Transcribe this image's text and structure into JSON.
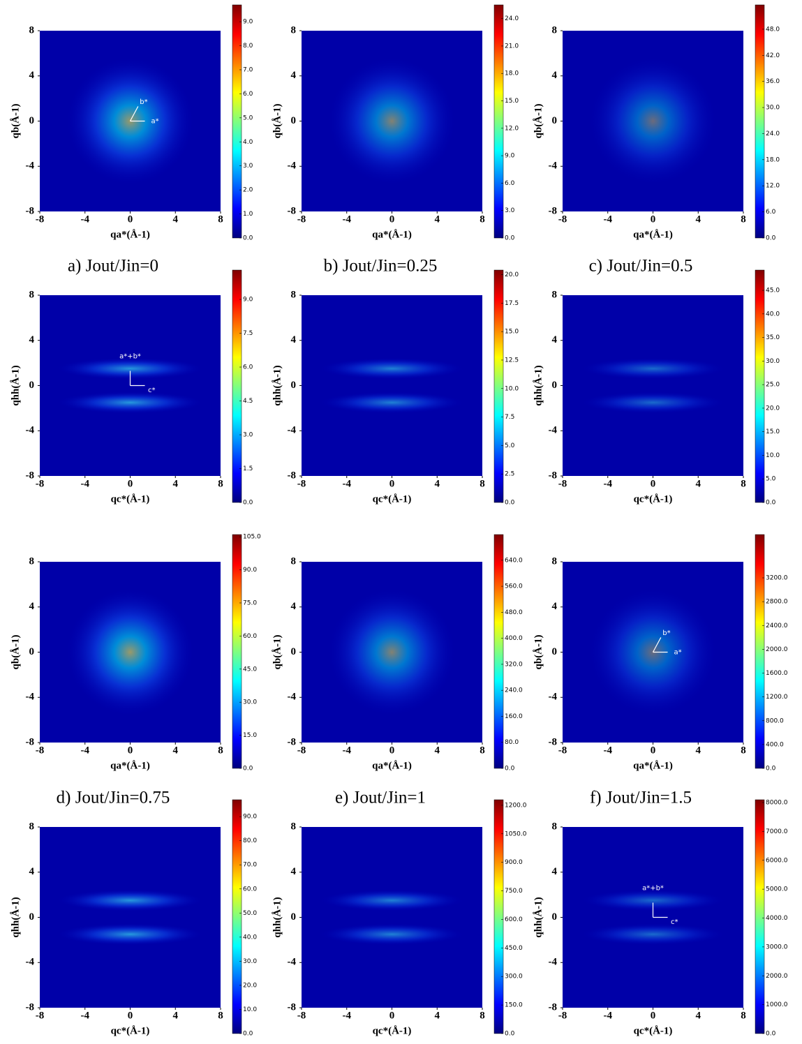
{
  "chart_data": [
    {
      "type": "heatmap",
      "xlabel": "qa*(Å-1)",
      "ylabel": "qb(Å-1)",
      "xlim": [
        -8,
        8
      ],
      "ylim": [
        -8,
        8
      ],
      "xticks": [
        -8,
        -4,
        0,
        4,
        8
      ],
      "yticks": [
        -8,
        -4,
        0,
        4,
        8
      ],
      "colormap": "jet",
      "clim": [
        0,
        9.7
      ],
      "cticks": [
        {
          "value": 0,
          "label": "0.0"
        },
        {
          "value": 1,
          "label": "1.0"
        },
        {
          "value": 2,
          "label": "2.0"
        },
        {
          "value": 3,
          "label": "3.0"
        },
        {
          "value": 4,
          "label": "4.0"
        },
        {
          "value": 5,
          "label": "5.0"
        },
        {
          "value": 6,
          "label": "6.0"
        },
        {
          "value": 7,
          "label": "7.0"
        },
        {
          "value": 8,
          "label": "8.0"
        },
        {
          "value": 9,
          "label": "9.0"
        }
      ],
      "annotations": [
        "b*",
        "a*"
      ]
    },
    {
      "type": "heatmap",
      "xlabel": "qa*(Å-1)",
      "ylabel": "qb(Å-1)",
      "xlim": [
        -8,
        8
      ],
      "ylim": [
        -8,
        8
      ],
      "xticks": [
        -8,
        -4,
        0,
        4,
        8
      ],
      "yticks": [
        -8,
        -4,
        0,
        4,
        8
      ],
      "colormap": "jet",
      "clim": [
        0,
        25.5
      ],
      "cticks": [
        {
          "value": 0,
          "label": "0.0"
        },
        {
          "value": 3,
          "label": "3.0"
        },
        {
          "value": 6,
          "label": "6.0"
        },
        {
          "value": 9,
          "label": "9.0"
        },
        {
          "value": 12,
          "label": "12.0"
        },
        {
          "value": 15,
          "label": "15.0"
        },
        {
          "value": 18,
          "label": "18.0"
        },
        {
          "value": 21,
          "label": "21.0"
        },
        {
          "value": 24,
          "label": "24.0"
        }
      ]
    },
    {
      "type": "heatmap",
      "xlabel": "qa*(Å-1)",
      "ylabel": "qb(Å-1)",
      "xlim": [
        -8,
        8
      ],
      "ylim": [
        -8,
        8
      ],
      "xticks": [
        -8,
        -4,
        0,
        4,
        8
      ],
      "yticks": [
        -8,
        -4,
        0,
        4,
        8
      ],
      "colormap": "jet",
      "clim": [
        0,
        53.6
      ],
      "cticks": [
        {
          "value": 0,
          "label": "0.0"
        },
        {
          "value": 6,
          "label": "6.0"
        },
        {
          "value": 12,
          "label": "12.0"
        },
        {
          "value": 18,
          "label": "18.0"
        },
        {
          "value": 24,
          "label": "24.0"
        },
        {
          "value": 30,
          "label": "30.0"
        },
        {
          "value": 36,
          "label": "36.0"
        },
        {
          "value": 42,
          "label": "42.0"
        },
        {
          "value": 48,
          "label": "48.0"
        }
      ]
    },
    {
      "type": "heatmap",
      "xlabel": "qc*(Å-1)",
      "ylabel": "qhh(Å-1)",
      "xlim": [
        -8,
        8
      ],
      "ylim": [
        -8,
        8
      ],
      "xticks": [
        -8,
        -4,
        0,
        4,
        8
      ],
      "yticks": [
        -8,
        -4,
        0,
        4,
        8
      ],
      "colormap": "jet",
      "clim": [
        0,
        10.3
      ],
      "cticks": [
        {
          "value": 0,
          "label": "0.0"
        },
        {
          "value": 1.5,
          "label": "1.5"
        },
        {
          "value": 3,
          "label": "3.0"
        },
        {
          "value": 4.5,
          "label": "4.5"
        },
        {
          "value": 6,
          "label": "6.0"
        },
        {
          "value": 7.5,
          "label": "7.5"
        },
        {
          "value": 9,
          "label": "9.0"
        }
      ],
      "annotations": [
        "a*+b*",
        "c*"
      ]
    },
    {
      "type": "heatmap",
      "xlabel": "qc*(Å-1)",
      "ylabel": "qhh(Å-1)",
      "xlim": [
        -8,
        8
      ],
      "ylim": [
        -8,
        8
      ],
      "xticks": [
        -8,
        -4,
        0,
        4,
        8
      ],
      "yticks": [
        -8,
        -4,
        0,
        4,
        8
      ],
      "colormap": "jet",
      "clim": [
        0,
        20.4
      ],
      "cticks": [
        {
          "value": 0,
          "label": "0.0"
        },
        {
          "value": 2.5,
          "label": "2.5"
        },
        {
          "value": 5,
          "label": "5.0"
        },
        {
          "value": 7.5,
          "label": "7.5"
        },
        {
          "value": 10,
          "label": "10.0"
        },
        {
          "value": 12.5,
          "label": "12.5"
        },
        {
          "value": 15,
          "label": "15.0"
        },
        {
          "value": 17.5,
          "label": "17.5"
        },
        {
          "value": 20,
          "label": "20.0"
        }
      ]
    },
    {
      "type": "heatmap",
      "xlabel": "qc*(Å-1)",
      "ylabel": "qhh(Å-1)",
      "xlim": [
        -8,
        8
      ],
      "ylim": [
        -8,
        8
      ],
      "xticks": [
        -8,
        -4,
        0,
        4,
        8
      ],
      "yticks": [
        -8,
        -4,
        0,
        4,
        8
      ],
      "colormap": "jet",
      "clim": [
        0,
        49.3
      ],
      "cticks": [
        {
          "value": 0,
          "label": "0.0"
        },
        {
          "value": 5,
          "label": "5.0"
        },
        {
          "value": 10,
          "label": "10.0"
        },
        {
          "value": 15,
          "label": "15.0"
        },
        {
          "value": 20,
          "label": "20.0"
        },
        {
          "value": 25,
          "label": "25.0"
        },
        {
          "value": 30,
          "label": "30.0"
        },
        {
          "value": 35,
          "label": "35.0"
        },
        {
          "value": 40,
          "label": "40.0"
        },
        {
          "value": 45,
          "label": "45.0"
        }
      ]
    },
    {
      "type": "heatmap",
      "xlabel": "qa*(Å-1)",
      "ylabel": "qb(Å-1)",
      "xlim": [
        -8,
        8
      ],
      "ylim": [
        -8,
        8
      ],
      "xticks": [
        -8,
        -4,
        0,
        4,
        8
      ],
      "yticks": [
        -8,
        -4,
        0,
        4,
        8
      ],
      "colormap": "jet",
      "clim": [
        0,
        106
      ],
      "cticks": [
        {
          "value": 0,
          "label": "0.0"
        },
        {
          "value": 15,
          "label": "15.0"
        },
        {
          "value": 30,
          "label": "30.0"
        },
        {
          "value": 45,
          "label": "45.0"
        },
        {
          "value": 60,
          "label": "60.0"
        },
        {
          "value": 75,
          "label": "75.0"
        },
        {
          "value": 90,
          "label": "90.0"
        },
        {
          "value": 105,
          "label": "105.0"
        }
      ]
    },
    {
      "type": "heatmap",
      "xlabel": "qa*(Å-1)",
      "ylabel": "qb(Å-1)",
      "xlim": [
        -8,
        8
      ],
      "ylim": [
        -8,
        8
      ],
      "xticks": [
        -8,
        -4,
        0,
        4,
        8
      ],
      "yticks": [
        -8,
        -4,
        0,
        4,
        8
      ],
      "colormap": "jet",
      "clim": [
        0,
        719
      ],
      "cticks": [
        {
          "value": 0,
          "label": "0.0"
        },
        {
          "value": 80,
          "label": "80.0"
        },
        {
          "value": 160,
          "label": "160.0"
        },
        {
          "value": 240,
          "label": "240.0"
        },
        {
          "value": 320,
          "label": "320.0"
        },
        {
          "value": 400,
          "label": "400.0"
        },
        {
          "value": 480,
          "label": "480.0"
        },
        {
          "value": 560,
          "label": "560.0"
        },
        {
          "value": 640,
          "label": "640.0"
        }
      ]
    },
    {
      "type": "heatmap",
      "xlabel": "qa*(Å-1)",
      "ylabel": "qb(Å-1)",
      "xlim": [
        -8,
        8
      ],
      "ylim": [
        -8,
        8
      ],
      "xticks": [
        -8,
        -4,
        0,
        4,
        8
      ],
      "yticks": [
        -8,
        -4,
        0,
        4,
        8
      ],
      "colormap": "jet",
      "clim": [
        0,
        3927
      ],
      "cticks": [
        {
          "value": 0,
          "label": "0.0"
        },
        {
          "value": 400,
          "label": "400.0"
        },
        {
          "value": 800,
          "label": "800.0"
        },
        {
          "value": 1200,
          "label": "1200.0"
        },
        {
          "value": 1600,
          "label": "1600.0"
        },
        {
          "value": 2000,
          "label": "2000.0"
        },
        {
          "value": 2400,
          "label": "2400.0"
        },
        {
          "value": 2800,
          "label": "2800.0"
        },
        {
          "value": 3200,
          "label": "3200.0"
        }
      ],
      "annotations": [
        "b*",
        "a*"
      ]
    },
    {
      "type": "heatmap",
      "xlabel": "qc*(Å-1)",
      "ylabel": "qhh(Å-1)",
      "xlim": [
        -8,
        8
      ],
      "ylim": [
        -8,
        8
      ],
      "xticks": [
        -8,
        -4,
        0,
        4,
        8
      ],
      "yticks": [
        -8,
        -4,
        0,
        4,
        8
      ],
      "colormap": "jet",
      "clim": [
        0,
        97
      ],
      "cticks": [
        {
          "value": 0,
          "label": "0.0"
        },
        {
          "value": 10,
          "label": "10.0"
        },
        {
          "value": 20,
          "label": "20.0"
        },
        {
          "value": 30,
          "label": "30.0"
        },
        {
          "value": 40,
          "label": "40.0"
        },
        {
          "value": 50,
          "label": "50.0"
        },
        {
          "value": 60,
          "label": "60.0"
        },
        {
          "value": 70,
          "label": "70.0"
        },
        {
          "value": 80,
          "label": "80.0"
        },
        {
          "value": 90,
          "label": "90.0"
        }
      ]
    },
    {
      "type": "heatmap",
      "xlabel": "qc*(Å-1)",
      "ylabel": "qhh(Å-1)",
      "xlim": [
        -8,
        8
      ],
      "ylim": [
        -8,
        8
      ],
      "xticks": [
        -8,
        -4,
        0,
        4,
        8
      ],
      "yticks": [
        -8,
        -4,
        0,
        4,
        8
      ],
      "colormap": "jet",
      "clim": [
        0,
        1229
      ],
      "cticks": [
        {
          "value": 0,
          "label": "0.0"
        },
        {
          "value": 150,
          "label": "150.0"
        },
        {
          "value": 300,
          "label": "300.0"
        },
        {
          "value": 450,
          "label": "450.0"
        },
        {
          "value": 600,
          "label": "600.0"
        },
        {
          "value": 750,
          "label": "750.0"
        },
        {
          "value": 900,
          "label": "900.0"
        },
        {
          "value": 1050,
          "label": "1050.0"
        },
        {
          "value": 1200,
          "label": "1200.0"
        }
      ]
    },
    {
      "type": "heatmap",
      "xlabel": "qc*(Å-1)",
      "ylabel": "qhh(Å-1)",
      "xlim": [
        -8,
        8
      ],
      "ylim": [
        -8,
        8
      ],
      "xticks": [
        -8,
        -4,
        0,
        4,
        8
      ],
      "yticks": [
        -8,
        -4,
        0,
        4,
        8
      ],
      "colormap": "jet",
      "clim": [
        0,
        8097
      ],
      "cticks": [
        {
          "value": 0,
          "label": "0.0"
        },
        {
          "value": 1000,
          "label": "1000.0"
        },
        {
          "value": 2000,
          "label": "2000.0"
        },
        {
          "value": 3000,
          "label": "3000.0"
        },
        {
          "value": 4000,
          "label": "4000.0"
        },
        {
          "value": 5000,
          "label": "5000.0"
        },
        {
          "value": 6000,
          "label": "6000.0"
        },
        {
          "value": 7000,
          "label": "7000.0"
        },
        {
          "value": 8000,
          "label": "8000.0"
        }
      ],
      "annotations": [
        "a*+b*",
        "c*"
      ]
    }
  ],
  "captions": [
    "a) Jout/Jin=0",
    "b) Jout/Jin=0.25",
    "c) Jout/Jin=0.5",
    "d) Jout/Jin=0.75",
    "e) Jout/Jin=1",
    "f) Jout/Jin=1.5"
  ]
}
